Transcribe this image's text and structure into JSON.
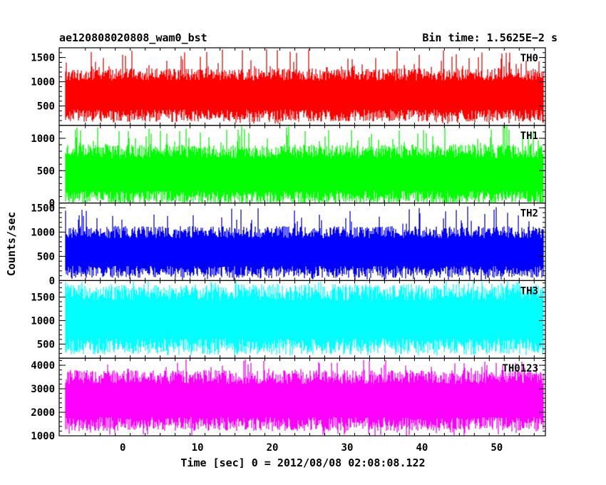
{
  "title_left": "ae120808020808_wam0_bst",
  "title_right": "Bin time: 1.5625E−2 s",
  "xlabel": "Time [sec] 0 = 2012/08/08 02:08:08.122",
  "ylabel": "Counts/sec",
  "chart_data": [
    {
      "type": "line",
      "name": "TH0",
      "color": "#ff0000",
      "ylim": [
        100,
        1700
      ],
      "yticks": [
        500,
        1000,
        1500
      ],
      "xlim": [
        -8.5,
        56.5
      ],
      "data_xrange": [
        -7.6,
        56.2
      ],
      "typical_low": 300,
      "typical_high": 1150,
      "spike_high": 1700,
      "dip_low": 130
    },
    {
      "type": "line",
      "name": "TH1",
      "color": "#00ff00",
      "ylim": [
        0,
        1200
      ],
      "yticks": [
        0,
        500,
        1000
      ],
      "xlim": [
        -8.5,
        56.5
      ],
      "data_xrange": [
        -7.6,
        56.2
      ],
      "typical_low": 80,
      "typical_high": 800,
      "spike_high": 1200,
      "dip_low": 5
    },
    {
      "type": "line",
      "name": "TH2",
      "color": "#0000ff",
      "ylim": [
        0,
        1600
      ],
      "yticks": [
        0,
        500,
        1000,
        1500
      ],
      "xlim": [
        -8.5,
        56.5
      ],
      "data_xrange": [
        -7.6,
        56.2
      ],
      "typical_low": 180,
      "typical_high": 1000,
      "spike_high": 1550,
      "dip_low": 10
    },
    {
      "type": "line",
      "name": "TH3",
      "color": "#00ffff",
      "ylim": [
        200,
        1850
      ],
      "yticks": [
        500,
        1000,
        1500
      ],
      "xlim": [
        -8.5,
        56.5
      ],
      "data_xrange": [
        -7.6,
        56.2
      ],
      "typical_low": 450,
      "typical_high": 1600,
      "spike_high": 1850,
      "dip_low": 250
    },
    {
      "type": "line",
      "name": "TH0123",
      "color": "#ff00ff",
      "ylim": [
        1000,
        4300
      ],
      "yticks": [
        1000,
        2000,
        3000,
        4000
      ],
      "xlim": [
        -8.5,
        56.5
      ],
      "data_xrange": [
        -7.6,
        56.2
      ],
      "typical_low": 1500,
      "typical_high": 3500,
      "spike_high": 4250,
      "dip_low": 1000
    }
  ],
  "xticks": [
    0,
    10,
    20,
    30,
    40,
    50
  ]
}
